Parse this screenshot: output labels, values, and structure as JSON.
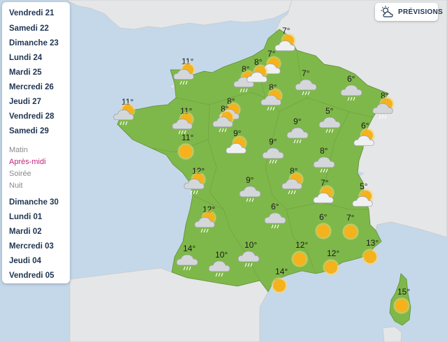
{
  "days": [
    "Vendredi 21",
    "Samedi 22",
    "Dimanche 23",
    "Lundi 24",
    "Mardi 25",
    "Mercredi 26",
    "Jeudi 27",
    "Vendredi 28",
    "Samedi 29"
  ],
  "periods": [
    {
      "label": "Matin",
      "active": false
    },
    {
      "label": "Après-midi",
      "active": true
    },
    {
      "label": "Soirée",
      "active": false
    },
    {
      "label": "Nuit",
      "active": false
    }
  ],
  "days2": [
    "Dimanche 30",
    "Lundi 01",
    "Mardi 02",
    "Mercredi 03",
    "Jeudi 04",
    "Vendredi 05"
  ],
  "previsions_label": "PRÉVISIONS",
  "colors": {
    "land": "#7fb84a",
    "sea": "#c4d8ea",
    "neighbor": "#e5e6e7",
    "active_period": "#c0267b",
    "sun": "#f5b21c"
  },
  "forecasts": [
    {
      "temp": "7°",
      "icon": "sun-cloud"
    },
    {
      "temp": "7°",
      "icon": "sun-cloud"
    },
    {
      "temp": "8°",
      "icon": "sun-cloud-rain"
    },
    {
      "temp": "11°",
      "icon": "sun-cloud-rain"
    },
    {
      "temp": "8°",
      "icon": "sun-cloud-rain"
    },
    {
      "temp": "7°",
      "icon": "cloud-rain"
    },
    {
      "temp": "6°",
      "icon": "cloud-rain"
    },
    {
      "temp": "8°",
      "icon": "sun-cloud-rain"
    },
    {
      "temp": "8°",
      "icon": "sun-cloud-rain"
    },
    {
      "temp": "8°",
      "icon": "sun-cloud"
    },
    {
      "temp": "11°",
      "icon": "sun-cloud-rain"
    },
    {
      "temp": "11°",
      "icon": "sun-cloud-rain"
    },
    {
      "temp": "8°",
      "icon": "sun-cloud-rain"
    },
    {
      "temp": "9°",
      "icon": "cloud-rain"
    },
    {
      "temp": "5°",
      "icon": "cloud-rain"
    },
    {
      "temp": "6°",
      "icon": "sun-cloud"
    },
    {
      "temp": "11°",
      "icon": "sun"
    },
    {
      "temp": "9°",
      "icon": "sun-cloud"
    },
    {
      "temp": "9°",
      "icon": "cloud-rain"
    },
    {
      "temp": "8°",
      "icon": "cloud-rain"
    },
    {
      "temp": "12°",
      "icon": "sun-cloud-rain"
    },
    {
      "temp": "9°",
      "icon": "cloud-rain"
    },
    {
      "temp": "8°",
      "icon": "sun-cloud-rain"
    },
    {
      "temp": "7°",
      "icon": "sun-cloud"
    },
    {
      "temp": "5°",
      "icon": "sun-cloud"
    },
    {
      "temp": "12°",
      "icon": "sun-cloud-rain"
    },
    {
      "temp": "6°",
      "icon": "cloud-rain"
    },
    {
      "temp": "6°",
      "icon": "sun"
    },
    {
      "temp": "7°",
      "icon": "sun"
    },
    {
      "temp": "14°",
      "icon": "cloud-rain"
    },
    {
      "temp": "10°",
      "icon": "cloud-rain"
    },
    {
      "temp": "10°",
      "icon": "cloud-rain"
    },
    {
      "temp": "12°",
      "icon": "sun"
    },
    {
      "temp": "12°",
      "icon": "sun"
    },
    {
      "temp": "13°",
      "icon": "sun"
    },
    {
      "temp": "14°",
      "icon": "sun"
    },
    {
      "temp": "15°",
      "icon": "sun"
    }
  ]
}
